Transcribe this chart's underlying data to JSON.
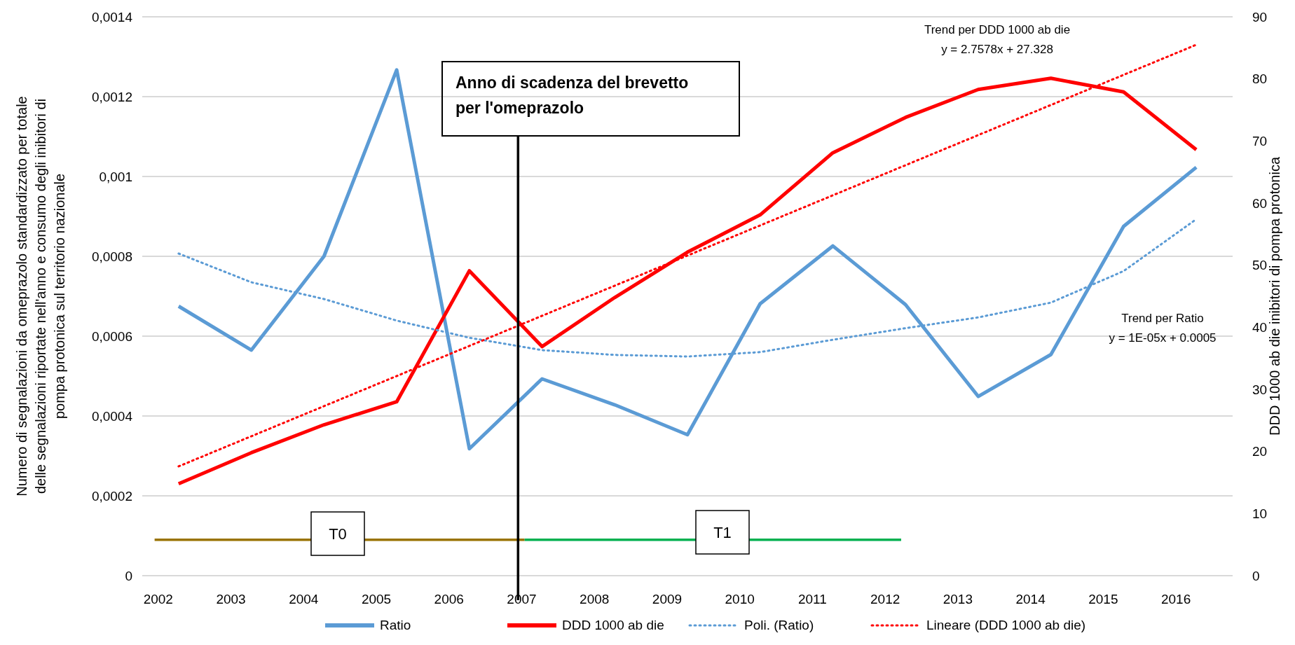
{
  "chart_data": {
    "type": "line",
    "ylabel": "Numero di segnalazioni da omeprazolo standardizzato per totale\ndelle segnalazioni riportate nell'anno e consumo degli inibitori di\npompa protonica sul territorio nazionale",
    "y2label": "DDD 1000 ab die inibitori di pompa protonica",
    "x": [
      2002,
      2003,
      2004,
      2005,
      2006,
      2007,
      2008,
      2009,
      2010,
      2011,
      2012,
      2013,
      2014,
      2015,
      2016
    ],
    "xlim": [
      2001.5,
      2016.5
    ],
    "xticks": [
      {
        "value": 2001.72,
        "label": "2002"
      },
      {
        "value": 2002.72,
        "label": "2003"
      },
      {
        "value": 2003.72,
        "label": "2004"
      },
      {
        "value": 2004.72,
        "label": "2005"
      },
      {
        "value": 2005.72,
        "label": "2006"
      },
      {
        "value": 2006.72,
        "label": "2007"
      },
      {
        "value": 2007.72,
        "label": "2008"
      },
      {
        "value": 2008.72,
        "label": "2009"
      },
      {
        "value": 2009.72,
        "label": "2010"
      },
      {
        "value": 2010.72,
        "label": "2011"
      },
      {
        "value": 2011.72,
        "label": "2012"
      },
      {
        "value": 2012.72,
        "label": "2013"
      },
      {
        "value": 2013.72,
        "label": "2014"
      },
      {
        "value": 2014.72,
        "label": "2015"
      },
      {
        "value": 2015.72,
        "label": "2016"
      }
    ],
    "ylim": [
      0,
      0.0014
    ],
    "yticks": [
      {
        "value": 0,
        "label": "0"
      },
      {
        "value": 0.0002,
        "label": "0,0002"
      },
      {
        "value": 0.0004,
        "label": "0,0004"
      },
      {
        "value": 0.0006,
        "label": "0,0006"
      },
      {
        "value": 0.0008,
        "label": "0,0008"
      },
      {
        "value": 0.001,
        "label": "0,001"
      },
      {
        "value": 0.0012,
        "label": "0,0012"
      },
      {
        "value": 0.0014,
        "label": "0,0014"
      }
    ],
    "y2lim": [
      0,
      90
    ],
    "y2ticks": [
      0,
      10,
      20,
      30,
      40,
      50,
      60,
      70,
      80,
      90
    ],
    "grid": "y",
    "legend": "bottom",
    "series": [
      {
        "name": "Ratio",
        "color": "#5b9bd5",
        "values": [
          0.000675,
          0.000565,
          0.0008,
          0.001267,
          0.000318,
          0.000493,
          0.000428,
          0.000353,
          0.000681,
          0.000826,
          0.000679,
          0.000449,
          0.000554,
          0.000875,
          0.001023
        ]
      },
      {
        "name": "DDD 1000 ab die",
        "color": "#ff0000",
        "axis": "y2",
        "values": [
          14.8,
          19.8,
          24.3,
          28.0,
          49.1,
          36.9,
          44.8,
          52.1,
          58.1,
          68.1,
          73.8,
          78.3,
          80.1,
          77.9,
          68.6
        ]
      },
      {
        "name": "Poli. (Ratio)",
        "color": "#5b9bd5",
        "line_style": "dotted",
        "values": [
          0.000807,
          0.000735,
          0.000693,
          0.000639,
          0.000596,
          0.000565,
          0.000553,
          0.000549,
          0.00056,
          0.000591,
          0.00062,
          0.000647,
          0.000684,
          0.000763,
          0.000893
        ]
      },
      {
        "name": "Lineare (DDD 1000 ab die)",
        "color": "#ff0000",
        "axis": "y2",
        "line_style": "dotted",
        "x": [
          2002,
          2016
        ],
        "values": [
          17.6,
          85.5
        ]
      },
      {
        "color": "#997300",
        "x": [
          2001.67,
          2006.76
        ],
        "values": [
          9e-05,
          9e-05
        ]
      },
      {
        "color": "#00b050",
        "x": [
          2006.76,
          2011.94
        ],
        "values": [
          9e-05,
          9e-05
        ]
      }
    ],
    "ref_lines": [
      {
        "axis": "x",
        "value": 2006.67,
        "color": "#000000"
      }
    ],
    "annotations": [
      "Anno di scadenza del brevetto\nper l'omeprazolo",
      "Trend per DDD 1000 ab die\ny = 2.7578x + 27.328",
      "Trend per Ratio\ny = 1E-05x + 0.0005",
      "T0",
      "T1"
    ]
  }
}
